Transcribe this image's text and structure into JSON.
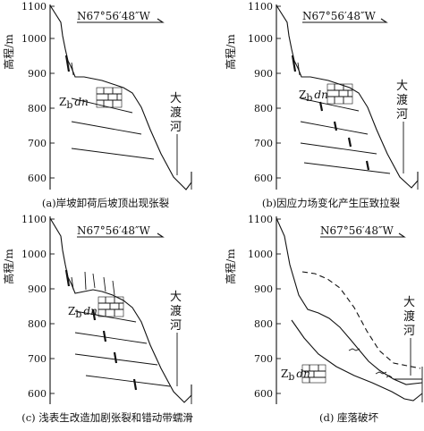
{
  "panels": [
    {
      "direction": "N67°56′48″W",
      "unit_main": "Z",
      "unit_sub": "b",
      "unit_suffix": "dn",
      "river": [
        "大",
        "渡",
        "河"
      ],
      "ylabel": "高程/m",
      "yticks": [
        "1100",
        "1000",
        "900",
        "800",
        "700",
        "600"
      ],
      "caption": "(a)岸坡卸荷后坡顶出现张裂"
    },
    {
      "direction": "N67°56′48″W",
      "unit_main": "Z",
      "unit_sub": "b",
      "unit_suffix": "dn",
      "river": [
        "大",
        "渡",
        "河"
      ],
      "ylabel": "高程/m",
      "yticks": [
        "1100",
        "1000",
        "900",
        "800",
        "700",
        "600"
      ],
      "caption": "(b)因应力场变化产生压致拉裂"
    },
    {
      "direction": "N67°56′48″W",
      "unit_main": "Z",
      "unit_sub": "b",
      "unit_suffix": "dn",
      "river": [
        "大",
        "渡",
        "河"
      ],
      "ylabel": "高程/m",
      "yticks": [
        "1100",
        "1000",
        "900",
        "800",
        "700",
        "600"
      ],
      "caption": "(c) 浅表生改造加剧张裂和错动带蠕滑"
    },
    {
      "direction": "N67°56′48″W",
      "unit_main": "Z",
      "unit_sub": "b",
      "unit_suffix": "dn",
      "river": [
        "大",
        "渡",
        "河"
      ],
      "ylabel": "高程/m",
      "yticks": [
        "1100",
        "1000",
        "900",
        "800",
        "700",
        "600"
      ],
      "caption": "(d) 座落破坏"
    }
  ]
}
